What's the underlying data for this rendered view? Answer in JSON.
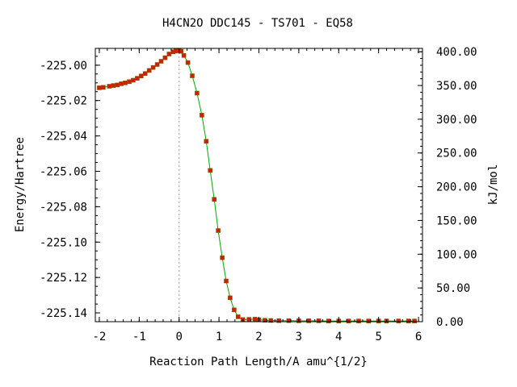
{
  "chart_data": {
    "type": "line",
    "title": "H4CN2O   DDC145 - TS701 - EQ58",
    "xlabel": "Reaction Path Length/A amu^{1/2}",
    "ylabel": "Energy/Hartree",
    "y2label": "kJ/mol",
    "xlim": [
      -2.1,
      6.1
    ],
    "ylim": [
      -225.145,
      -224.9905
    ],
    "y2lim": [
      0,
      405
    ],
    "x_ticks": [
      "-2",
      "-1",
      "0",
      "1",
      "2",
      "3",
      "4",
      "5",
      "6"
    ],
    "y_ticks": [
      "-225.00",
      "-225.02",
      "-225.04",
      "-225.06",
      "-225.08",
      "-225.10",
      "-225.12",
      "-225.14"
    ],
    "y2_ticks": [
      "0.00",
      "50.00",
      "100.00",
      "150.00",
      "200.00",
      "250.00",
      "300.00",
      "350.00",
      "400.00"
    ],
    "ts_marker_x": 0,
    "grid": false,
    "colors": {
      "curve": "#00aa00",
      "marker": "#cc2200",
      "marker_edge": "#885500",
      "ts_line": "#999999"
    },
    "series": [
      {
        "values": [
          [
            -2.0,
            -225.0128
          ],
          [
            -1.9,
            -225.0125
          ],
          [
            -1.75,
            -225.0119
          ],
          [
            -1.65,
            -225.0115
          ],
          [
            -1.55,
            -225.0112
          ],
          [
            -1.45,
            -225.0105
          ],
          [
            -1.35,
            -225.01
          ],
          [
            -1.25,
            -225.0093
          ],
          [
            -1.15,
            -225.0085
          ],
          [
            -1.05,
            -225.0074
          ],
          [
            -0.95,
            -225.0061
          ],
          [
            -0.85,
            -225.0047
          ],
          [
            -0.75,
            -225.003
          ],
          [
            -0.65,
            -225.0013
          ],
          [
            -0.55,
            -224.9996
          ],
          [
            -0.45,
            -224.9978
          ],
          [
            -0.35,
            -224.9958
          ],
          [
            -0.25,
            -224.9937
          ],
          [
            -0.15,
            -224.9924
          ],
          [
            -0.08,
            -224.992
          ],
          [
            0.0,
            -224.9918
          ],
          [
            0.05,
            -224.9922
          ],
          [
            0.12,
            -224.9945
          ],
          [
            0.22,
            -224.9985
          ],
          [
            0.33,
            -225.006
          ],
          [
            0.45,
            -225.0158
          ],
          [
            0.57,
            -225.0283
          ],
          [
            0.68,
            -225.043
          ],
          [
            0.78,
            -225.0595
          ],
          [
            0.88,
            -225.0758
          ],
          [
            0.98,
            -225.0935
          ],
          [
            1.08,
            -225.1088
          ],
          [
            1.18,
            -225.122
          ],
          [
            1.28,
            -225.1315
          ],
          [
            1.38,
            -225.1383
          ],
          [
            1.48,
            -225.1422
          ],
          [
            1.6,
            -225.1438
          ],
          [
            1.75,
            -225.1437
          ],
          [
            1.9,
            -225.1436
          ],
          [
            2.0,
            -225.1439
          ],
          [
            2.15,
            -225.1442
          ],
          [
            2.3,
            -225.1443
          ],
          [
            2.5,
            -225.1444
          ],
          [
            2.75,
            -225.1444
          ],
          [
            3.0,
            -225.1445
          ],
          [
            3.25,
            -225.1445
          ],
          [
            3.5,
            -225.1445
          ],
          [
            3.75,
            -225.1446
          ],
          [
            4.0,
            -225.1446
          ],
          [
            4.25,
            -225.1446
          ],
          [
            4.5,
            -225.1446
          ],
          [
            4.75,
            -225.1446
          ],
          [
            5.0,
            -225.1446
          ],
          [
            5.2,
            -225.1446
          ],
          [
            5.5,
            -225.1446
          ],
          [
            5.75,
            -225.1446
          ],
          [
            5.9,
            -225.1446
          ]
        ]
      }
    ]
  }
}
